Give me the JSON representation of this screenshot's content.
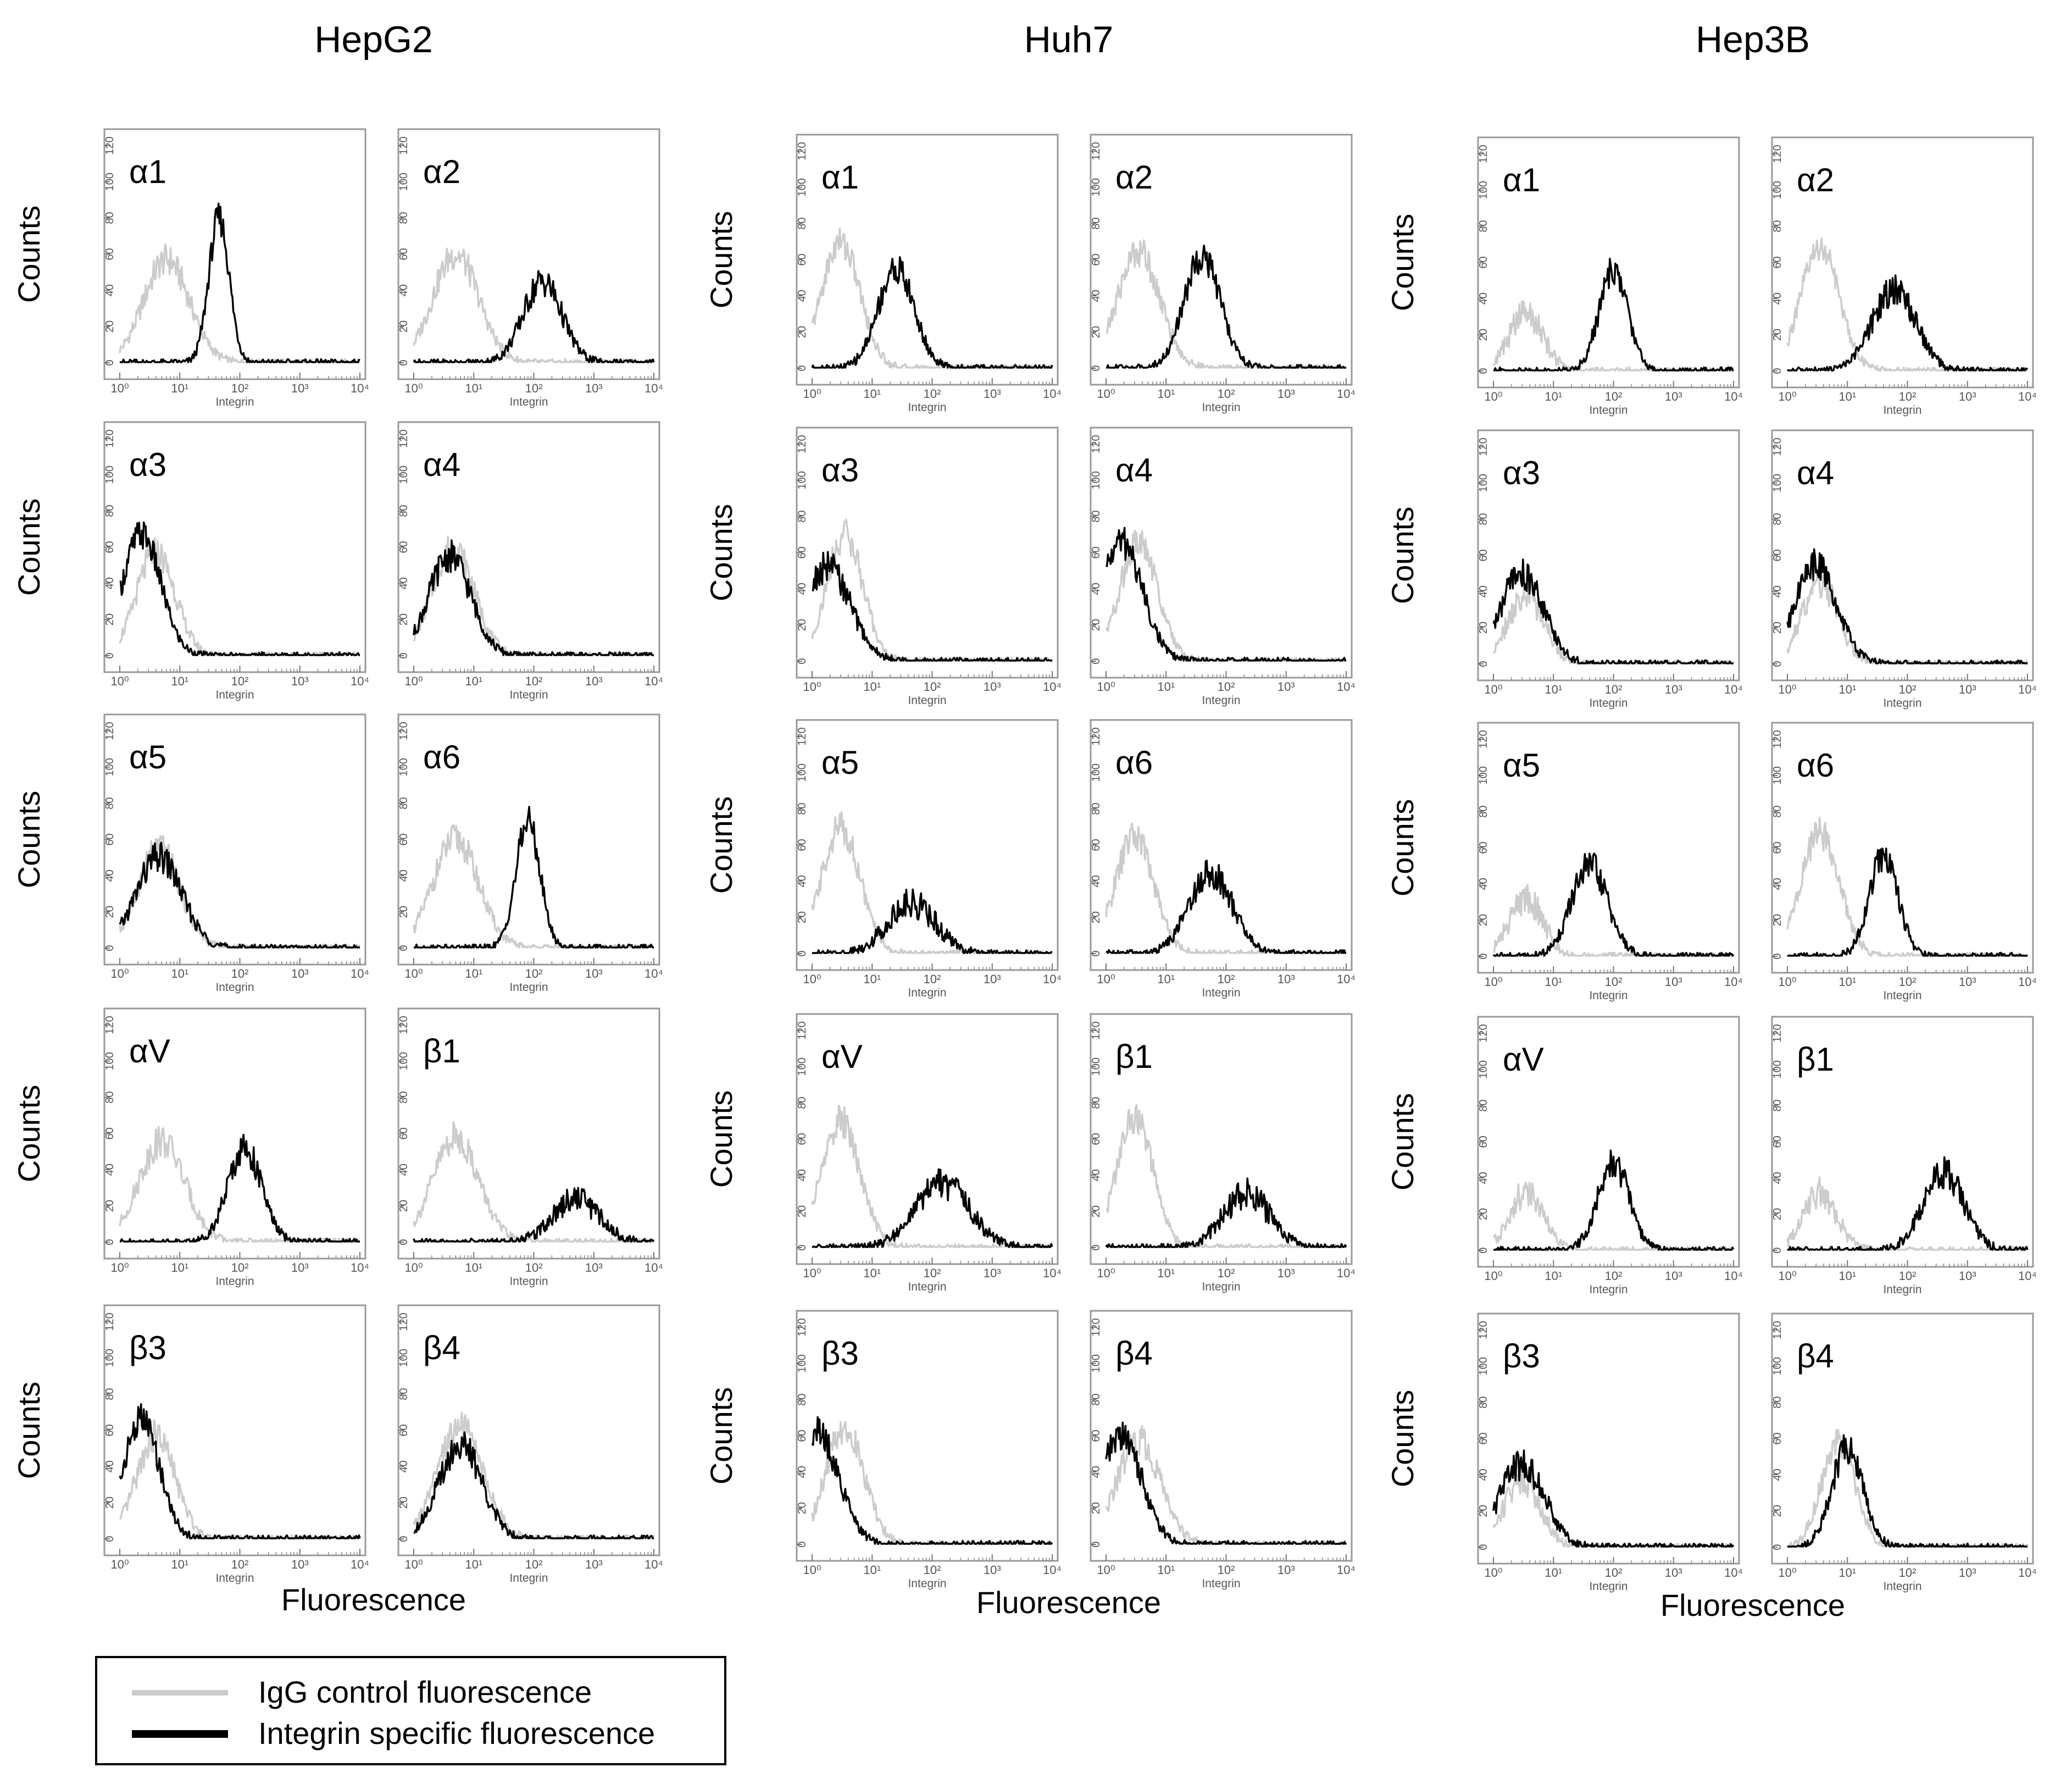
{
  "chart_data": {
    "type": "line",
    "x_scale": "log",
    "x_range": [
      1,
      10000
    ],
    "y_range": [
      0,
      120
    ],
    "x_tick_labels": [
      "10⁰",
      "10¹",
      "10²",
      "10³",
      "10⁴"
    ],
    "y_tick_labels": [
      "0",
      "20",
      "40",
      "60",
      "80",
      "100",
      "120"
    ],
    "panel_xlabel": "Integrin",
    "ylabel": "Counts",
    "xlabel": "Fluorescence",
    "legend": {
      "placement": "bottom-left",
      "entries": [
        {
          "name": "IgG control fluorescence",
          "color": "#cccccc"
        },
        {
          "name": "Integrin specific fluorescence",
          "color": "#000000"
        }
      ]
    },
    "groups": [
      {
        "title": "HepG2",
        "panels": [
          {
            "label": "α1",
            "control": {
              "peak_x": 6,
              "peak_y": 57,
              "width": 0.38
            },
            "integrin": {
              "peak_x": 45,
              "peak_y": 80,
              "width": 0.17
            }
          },
          {
            "label": "α2",
            "control": {
              "peak_x": 5,
              "peak_y": 60,
              "width": 0.38
            },
            "integrin": {
              "peak_x": 140,
              "peak_y": 45,
              "width": 0.32
            }
          },
          {
            "label": "α3",
            "control": {
              "peak_x": 4,
              "peak_y": 57,
              "width": 0.32
            },
            "integrin": {
              "peak_x": 2.3,
              "peak_y": 67,
              "width": 0.32
            }
          },
          {
            "label": "α4",
            "control": {
              "peak_x": 4.5,
              "peak_y": 60,
              "width": 0.35
            },
            "integrin": {
              "peak_x": 4,
              "peak_y": 55,
              "width": 0.35
            }
          },
          {
            "label": "α5",
            "control": {
              "peak_x": 4.5,
              "peak_y": 55,
              "width": 0.35
            },
            "integrin": {
              "peak_x": 4.5,
              "peak_y": 50,
              "width": 0.38
            }
          },
          {
            "label": "α6",
            "control": {
              "peak_x": 5,
              "peak_y": 60,
              "width": 0.38
            },
            "integrin": {
              "peak_x": 80,
              "peak_y": 70,
              "width": 0.2
            }
          },
          {
            "label": "αV",
            "control": {
              "peak_x": 5,
              "peak_y": 56,
              "width": 0.38
            },
            "integrin": {
              "peak_x": 120,
              "peak_y": 52,
              "width": 0.28
            }
          },
          {
            "label": "β1",
            "control": {
              "peak_x": 5,
              "peak_y": 58,
              "width": 0.38
            },
            "integrin": {
              "peak_x": 500,
              "peak_y": 25,
              "width": 0.38
            }
          },
          {
            "label": "β3",
            "control": {
              "peak_x": 4,
              "peak_y": 57,
              "width": 0.32
            },
            "integrin": {
              "peak_x": 2.3,
              "peak_y": 66,
              "width": 0.3
            }
          },
          {
            "label": "β4",
            "control": {
              "peak_x": 6,
              "peak_y": 62,
              "width": 0.38
            },
            "integrin": {
              "peak_x": 6,
              "peak_y": 52,
              "width": 0.36
            }
          }
        ]
      },
      {
        "title": "Huh7",
        "panels": [
          {
            "label": "α1",
            "control": {
              "peak_x": 3,
              "peak_y": 70,
              "width": 0.32
            },
            "integrin": {
              "peak_x": 25,
              "peak_y": 55,
              "width": 0.3
            }
          },
          {
            "label": "α2",
            "control": {
              "peak_x": 3.5,
              "peak_y": 65,
              "width": 0.35
            },
            "integrin": {
              "peak_x": 40,
              "peak_y": 62,
              "width": 0.3
            }
          },
          {
            "label": "α3",
            "control": {
              "peak_x": 3.5,
              "peak_y": 70,
              "width": 0.3
            },
            "integrin": {
              "peak_x": 1.8,
              "peak_y": 52,
              "width": 0.38
            }
          },
          {
            "label": "α4",
            "control": {
              "peak_x": 3.5,
              "peak_y": 65,
              "width": 0.32
            },
            "integrin": {
              "peak_x": 1.8,
              "peak_y": 66,
              "width": 0.35
            }
          },
          {
            "label": "α5",
            "control": {
              "peak_x": 3,
              "peak_y": 70,
              "width": 0.32
            },
            "integrin": {
              "peak_x": 45,
              "peak_y": 28,
              "width": 0.4
            }
          },
          {
            "label": "α6",
            "control": {
              "peak_x": 3,
              "peak_y": 65,
              "width": 0.32
            },
            "integrin": {
              "peak_x": 55,
              "peak_y": 45,
              "width": 0.36
            }
          },
          {
            "label": "αV",
            "control": {
              "peak_x": 3,
              "peak_y": 70,
              "width": 0.32
            },
            "integrin": {
              "peak_x": 150,
              "peak_y": 35,
              "width": 0.45
            }
          },
          {
            "label": "β1",
            "control": {
              "peak_x": 3,
              "peak_y": 72,
              "width": 0.3
            },
            "integrin": {
              "peak_x": 220,
              "peak_y": 30,
              "width": 0.38
            }
          },
          {
            "label": "β3",
            "control": {
              "peak_x": 3.5,
              "peak_y": 65,
              "width": 0.32
            },
            "integrin": {
              "peak_x": 1.2,
              "peak_y": 62,
              "width": 0.36
            }
          },
          {
            "label": "β4",
            "control": {
              "peak_x": 3.5,
              "peak_y": 58,
              "width": 0.36
            },
            "integrin": {
              "peak_x": 1.8,
              "peak_y": 60,
              "width": 0.34
            }
          }
        ]
      },
      {
        "title": "Hep3B",
        "panels": [
          {
            "label": "α1",
            "control": {
              "peak_x": 3.5,
              "peak_y": 32,
              "width": 0.28
            },
            "integrin": {
              "peak_x": 100,
              "peak_y": 55,
              "width": 0.24
            }
          },
          {
            "label": "α2",
            "control": {
              "peak_x": 3.5,
              "peak_y": 68,
              "width": 0.32
            },
            "integrin": {
              "peak_x": 60,
              "peak_y": 45,
              "width": 0.36
            }
          },
          {
            "label": "α3",
            "control": {
              "peak_x": 3.5,
              "peak_y": 38,
              "width": 0.3
            },
            "integrin": {
              "peak_x": 3,
              "peak_y": 50,
              "width": 0.36
            }
          },
          {
            "label": "α4",
            "control": {
              "peak_x": 3.5,
              "peak_y": 45,
              "width": 0.3
            },
            "integrin": {
              "peak_x": 3,
              "peak_y": 55,
              "width": 0.35
            }
          },
          {
            "label": "α5",
            "control": {
              "peak_x": 3.5,
              "peak_y": 32,
              "width": 0.28
            },
            "integrin": {
              "peak_x": 40,
              "peak_y": 50,
              "width": 0.3
            }
          },
          {
            "label": "α6",
            "control": {
              "peak_x": 3.5,
              "peak_y": 68,
              "width": 0.32
            },
            "integrin": {
              "peak_x": 40,
              "peak_y": 55,
              "width": 0.24
            }
          },
          {
            "label": "αV",
            "control": {
              "peak_x": 3.5,
              "peak_y": 32,
              "width": 0.28
            },
            "integrin": {
              "peak_x": 100,
              "peak_y": 48,
              "width": 0.26
            }
          },
          {
            "label": "β1",
            "control": {
              "peak_x": 3.5,
              "peak_y": 32,
              "width": 0.28
            },
            "integrin": {
              "peak_x": 400,
              "peak_y": 43,
              "width": 0.34
            }
          },
          {
            "label": "β3",
            "control": {
              "peak_x": 3,
              "peak_y": 38,
              "width": 0.3
            },
            "integrin": {
              "peak_x": 3,
              "peak_y": 45,
              "width": 0.38
            }
          },
          {
            "label": "β4",
            "control": {
              "peak_x": 7,
              "peak_y": 58,
              "width": 0.28
            },
            "integrin": {
              "peak_x": 10,
              "peak_y": 55,
              "width": 0.26
            }
          }
        ]
      }
    ]
  }
}
